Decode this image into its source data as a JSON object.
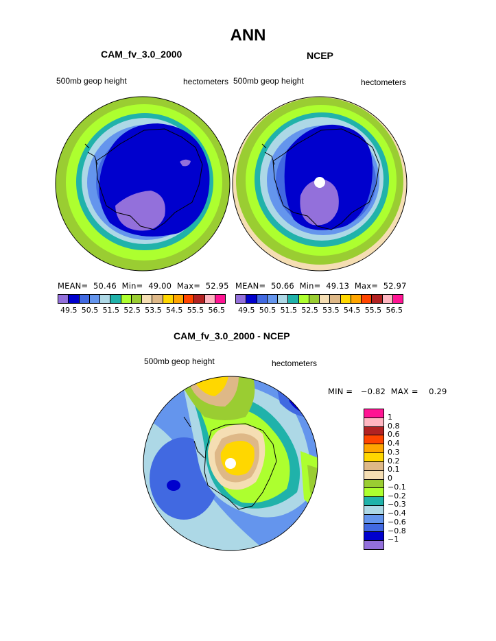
{
  "title": "ANN",
  "panels": [
    {
      "title": "CAM_fv_3.0_2000",
      "left_label": "500mb geop height",
      "right_label": "hectometers",
      "stats": "MEAN=  50.46  Min=  49.00  Max=  52.95"
    },
    {
      "title": "NCEP",
      "left_label": "500mb geop height",
      "right_label": "hectometers",
      "stats": "MEAN=  50.66  Min=  49.13  Max=  52.97"
    }
  ],
  "top_colorbar": {
    "colors": [
      "#9370DB",
      "#0000CD",
      "#4169E1",
      "#6495ED",
      "#ADD8E6",
      "#20B2AA",
      "#ADFF2F",
      "#9ACD32",
      "#F5DEB3",
      "#DEB887",
      "#FFD700",
      "#FFA500",
      "#FF4500",
      "#B22222",
      "#FFB6C1",
      "#FF1493"
    ],
    "labels": [
      "49.5",
      "50.5",
      "51.5",
      "52.5",
      "53.5",
      "54.5",
      "55.5",
      "56.5"
    ]
  },
  "diff_panel": {
    "title": "CAM_fv_3.0_2000 - NCEP",
    "left_label": "500mb geop height",
    "right_label": "hectometers",
    "stats": "MIN =   −0.82  MAX =    0.29"
  },
  "diff_colorbar": {
    "colors_top_to_bottom": [
      "#FF1493",
      "#FFB6C1",
      "#B22222",
      "#FF4500",
      "#FFA500",
      "#FFD700",
      "#DEB887",
      "#F5DEB3",
      "#9ACD32",
      "#ADFF2F",
      "#20B2AA",
      "#ADD8E6",
      "#6495ED",
      "#4169E1",
      "#0000CD",
      "#9370DB"
    ],
    "labels_top_to_bottom": [
      "1",
      "0.8",
      "0.6",
      "0.4",
      "0.3",
      "0.2",
      "0.1",
      "0",
      "−0.1",
      "−0.2",
      "−0.3",
      "−0.4",
      "−0.6",
      "−0.8",
      "−1"
    ]
  }
}
